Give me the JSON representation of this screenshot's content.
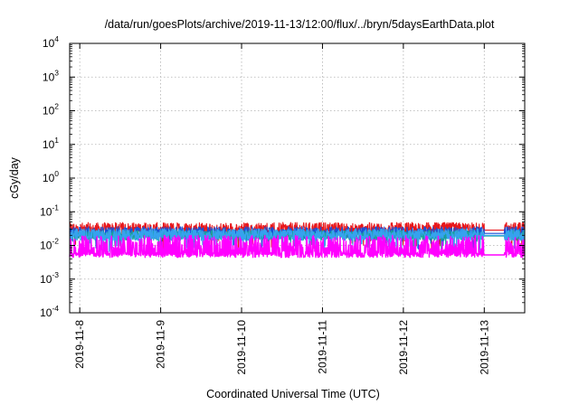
{
  "chart_data": {
    "type": "line",
    "title": "/data/run/goesPlots/archive/2019-11-13/12:00/flux/../bryn/5daysEarthData.plot",
    "xlabel": "Coordinated Universal Time (UTC)",
    "ylabel": "cGy/day",
    "y_scale": "log",
    "ylim": [
      0.0001,
      10000
    ],
    "y_ticks": [
      {
        "base": "10",
        "exp": "-4",
        "value": 0.0001
      },
      {
        "base": "10",
        "exp": "-3",
        "value": 0.001
      },
      {
        "base": "10",
        "exp": "-2",
        "value": 0.01
      },
      {
        "base": "10",
        "exp": "-1",
        "value": 0.1
      },
      {
        "base": "10",
        "exp": "0",
        "value": 1
      },
      {
        "base": "10",
        "exp": "1",
        "value": 10
      },
      {
        "base": "10",
        "exp": "2",
        "value": 100
      },
      {
        "base": "10",
        "exp": "3",
        "value": 1000
      },
      {
        "base": "10",
        "exp": "4",
        "value": 10000
      }
    ],
    "xlim": [
      "2019-11-07 21:00",
      "2019-11-13 12:00"
    ],
    "x_ticks": [
      "2019-11-8",
      "2019-11-9",
      "2019-11-10",
      "2019-11-11",
      "2019-11-12",
      "2019-11-13"
    ],
    "grid": true,
    "gap": [
      "2019-11-13 00:00",
      "2019-11-13 06:00"
    ],
    "series": [
      {
        "color": "#e8171b",
        "base": 0.03,
        "spread": 1.6,
        "spike_down": 0.85
      },
      {
        "color": "#1a4fd6",
        "base": 0.024,
        "spread": 1.5,
        "spike_down": 0.7
      },
      {
        "color": "#1aa39a",
        "base": 0.02,
        "spread": 1.4,
        "spike_down": 0.6
      },
      {
        "color": "#36a2ee",
        "base": 0.021,
        "spread": 1.5,
        "spike_down": 0.75
      },
      {
        "color": "#ff00ff",
        "base": 0.0055,
        "spread": 2.8,
        "spike_down": 0.0
      }
    ]
  }
}
